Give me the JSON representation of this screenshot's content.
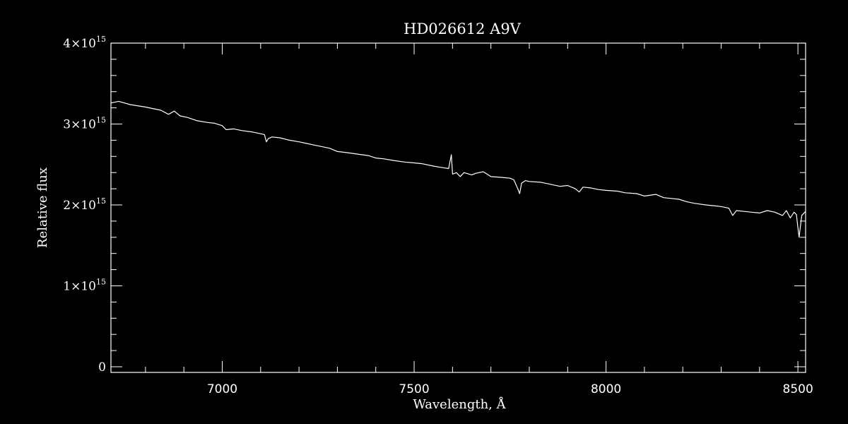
{
  "chart_data": {
    "type": "line",
    "title": "HD026612   A9V",
    "xlabel": "Wavelength, Å",
    "ylabel": "Relative flux",
    "xlim": [
      6710,
      8520
    ],
    "ylim": [
      -70000000000000.0,
      4000000000000000.0
    ],
    "x_ticks": [
      {
        "value": 7000,
        "label": "7000"
      },
      {
        "value": 7500,
        "label": "7500"
      },
      {
        "value": 8000,
        "label": "8000"
      },
      {
        "value": 8500,
        "label": "8500"
      }
    ],
    "y_ticks": [
      {
        "value": 0,
        "label": "0"
      },
      {
        "value": 1000000000000000.0,
        "label": "1×10",
        "exp": "15"
      },
      {
        "value": 2000000000000000.0,
        "label": "2×10",
        "exp": "15"
      },
      {
        "value": 3000000000000000.0,
        "label": "3×10",
        "exp": "15"
      },
      {
        "value": 4000000000000000.0,
        "label": "4×10",
        "exp": "15"
      }
    ],
    "grid": false,
    "line_color": "#ffffff",
    "background": "#000000",
    "series": [
      {
        "x": [
          6710,
          6730,
          6760,
          6800,
          6840,
          6860,
          6875,
          6890,
          6910,
          6935,
          6960,
          6980,
          7000,
          7010,
          7030,
          7050,
          7080,
          7110,
          7115,
          7120,
          7130,
          7150,
          7175,
          7200,
          7220,
          7240,
          7260,
          7280,
          7300,
          7320,
          7350,
          7380,
          7400,
          7420,
          7445,
          7475,
          7500,
          7520,
          7550,
          7575,
          7590,
          7597,
          7600,
          7610,
          7620,
          7630,
          7650,
          7660,
          7680,
          7700,
          7730,
          7750,
          7760,
          7770,
          7775,
          7780,
          7790,
          7800,
          7830,
          7850,
          7880,
          7900,
          7920,
          7930,
          7940,
          7960,
          7980,
          8000,
          8030,
          8050,
          8080,
          8100,
          8130,
          8150,
          8170,
          8190,
          8210,
          8230,
          8260,
          8280,
          8300,
          8320,
          8330,
          8340,
          8360,
          8380,
          8400,
          8420,
          8440,
          8460,
          8470,
          8480,
          8490,
          8496,
          8500,
          8503,
          8506,
          8510,
          8520
        ],
        "y": [
          3260000000000000.0,
          3280000000000000.0,
          3240000000000000.0,
          3210000000000000.0,
          3170000000000000.0,
          3120000000000000.0,
          3160000000000000.0,
          3100000000000000.0,
          3080000000000000.0,
          3040000000000000.0,
          3020000000000000.0,
          3010000000000000.0,
          2980000000000000.0,
          2930000000000000.0,
          2940000000000000.0,
          2920000000000000.0,
          2900000000000000.0,
          2870000000000000.0,
          2780000000000000.0,
          2820000000000000.0,
          2840000000000000.0,
          2830000000000000.0,
          2800000000000000.0,
          2780000000000000.0,
          2760000000000000.0,
          2740000000000000.0,
          2720000000000000.0,
          2700000000000000.0,
          2660000000000000.0,
          2650000000000000.0,
          2630000000000000.0,
          2610000000000000.0,
          2580000000000000.0,
          2570000000000000.0,
          2550000000000000.0,
          2530000000000000.0,
          2520000000000000.0,
          2510000000000000.0,
          2480000000000000.0,
          2460000000000000.0,
          2450000000000000.0,
          2620000000000000.0,
          2380000000000000.0,
          2400000000000000.0,
          2350000000000000.0,
          2400000000000000.0,
          2370000000000000.0,
          2390000000000000.0,
          2410000000000000.0,
          2350000000000000.0,
          2340000000000000.0,
          2330000000000000.0,
          2310000000000000.0,
          2200000000000000.0,
          2140000000000000.0,
          2270000000000000.0,
          2300000000000000.0,
          2290000000000000.0,
          2280000000000000.0,
          2260000000000000.0,
          2230000000000000.0,
          2240000000000000.0,
          2200000000000000.0,
          2160000000000000.0,
          2220000000000000.0,
          2210000000000000.0,
          2190000000000000.0,
          2180000000000000.0,
          2170000000000000.0,
          2150000000000000.0,
          2140000000000000.0,
          2110000000000000.0,
          2130000000000000.0,
          2090000000000000.0,
          2080000000000000.0,
          2070000000000000.0,
          2040000000000000.0,
          2020000000000000.0,
          2000000000000000.0,
          1990000000000000.0,
          1980000000000000.0,
          1960000000000000.0,
          1870000000000000.0,
          1930000000000000.0,
          1920000000000000.0,
          1910000000000000.0,
          1900000000000000.0,
          1930000000000000.0,
          1910000000000000.0,
          1870000000000000.0,
          1930000000000000.0,
          1840000000000000.0,
          1910000000000000.0,
          1880000000000000.0,
          1720000000000000.0,
          1600000000000000.0,
          1720000000000000.0,
          1870000000000000.0,
          1920000000000000.0
        ]
      }
    ]
  }
}
